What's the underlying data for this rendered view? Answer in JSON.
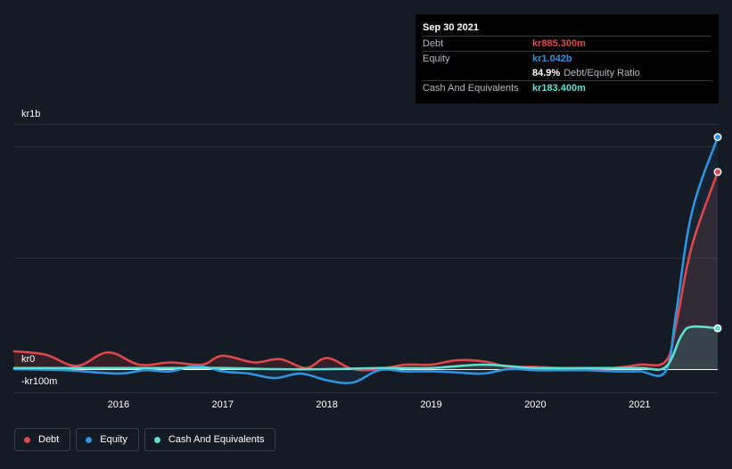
{
  "tooltip": {
    "date": "Sep 30 2021",
    "rows": [
      {
        "label": "Debt",
        "value": "kr885.300m"
      },
      {
        "label": "Equity",
        "value": "kr1.042b"
      },
      {
        "label": "",
        "ratio_value": "84.9%",
        "ratio_label": "Debt/Equity Ratio"
      },
      {
        "label": "Cash And Equivalents",
        "value": "kr183.400m"
      }
    ]
  },
  "axis": {
    "y_top": "kr1b",
    "y_zero": "kr0",
    "y_bottom": "-kr100m"
  },
  "legend": [
    "Debt",
    "Equity",
    "Cash And Equivalents"
  ],
  "colors": {
    "debt": "#e0474c",
    "equity": "#2f94e0",
    "cash": "#5de0cf",
    "background": "#151b24"
  },
  "chart_data": {
    "type": "line",
    "title": "",
    "xlabel": "",
    "ylabel": "",
    "y_unit": "kr millions",
    "ylim": [
      -100,
      1100
    ],
    "x_ticks": [
      "2016",
      "2017",
      "2018",
      "2019",
      "2020",
      "2021"
    ],
    "series": [
      {
        "name": "Debt",
        "points": [
          [
            2015.0,
            80
          ],
          [
            2015.3,
            65
          ],
          [
            2015.6,
            15
          ],
          [
            2015.9,
            75
          ],
          [
            2016.2,
            20
          ],
          [
            2016.5,
            30
          ],
          [
            2016.8,
            20
          ],
          [
            2017.0,
            60
          ],
          [
            2017.3,
            30
          ],
          [
            2017.55,
            45
          ],
          [
            2017.8,
            5
          ],
          [
            2018.0,
            50
          ],
          [
            2018.25,
            0
          ],
          [
            2018.5,
            0
          ],
          [
            2018.75,
            20
          ],
          [
            2019.0,
            20
          ],
          [
            2019.25,
            40
          ],
          [
            2019.5,
            35
          ],
          [
            2019.75,
            10
          ],
          [
            2020.0,
            10
          ],
          [
            2020.25,
            5
          ],
          [
            2020.5,
            5
          ],
          [
            2020.75,
            5
          ],
          [
            2021.0,
            20
          ],
          [
            2021.25,
            35
          ],
          [
            2021.35,
            200
          ],
          [
            2021.5,
            550
          ],
          [
            2021.75,
            885.3
          ]
        ]
      },
      {
        "name": "Equity",
        "points": [
          [
            2015.0,
            0
          ],
          [
            2015.5,
            -5
          ],
          [
            2016.0,
            -20
          ],
          [
            2016.25,
            -5
          ],
          [
            2016.5,
            -10
          ],
          [
            2016.75,
            15
          ],
          [
            2017.0,
            -10
          ],
          [
            2017.25,
            -20
          ],
          [
            2017.5,
            -40
          ],
          [
            2017.75,
            -20
          ],
          [
            2018.0,
            -50
          ],
          [
            2018.25,
            -60
          ],
          [
            2018.5,
            -5
          ],
          [
            2018.75,
            -10
          ],
          [
            2019.0,
            -10
          ],
          [
            2019.25,
            -15
          ],
          [
            2019.5,
            -20
          ],
          [
            2019.75,
            0
          ],
          [
            2020.0,
            -5
          ],
          [
            2020.25,
            -5
          ],
          [
            2020.5,
            -5
          ],
          [
            2020.75,
            -10
          ],
          [
            2021.0,
            -10
          ],
          [
            2021.25,
            -10
          ],
          [
            2021.35,
            250
          ],
          [
            2021.5,
            700
          ],
          [
            2021.75,
            1042
          ]
        ]
      },
      {
        "name": "Cash And Equivalents",
        "points": [
          [
            2015.0,
            5
          ],
          [
            2015.5,
            5
          ],
          [
            2016.0,
            5
          ],
          [
            2016.5,
            5
          ],
          [
            2017.0,
            5
          ],
          [
            2017.5,
            0
          ],
          [
            2018.0,
            0
          ],
          [
            2018.5,
            5
          ],
          [
            2019.0,
            5
          ],
          [
            2019.5,
            20
          ],
          [
            2020.0,
            5
          ],
          [
            2020.5,
            5
          ],
          [
            2021.0,
            5
          ],
          [
            2021.25,
            10
          ],
          [
            2021.4,
            150
          ],
          [
            2021.5,
            190
          ],
          [
            2021.75,
            183.4
          ]
        ]
      }
    ]
  }
}
